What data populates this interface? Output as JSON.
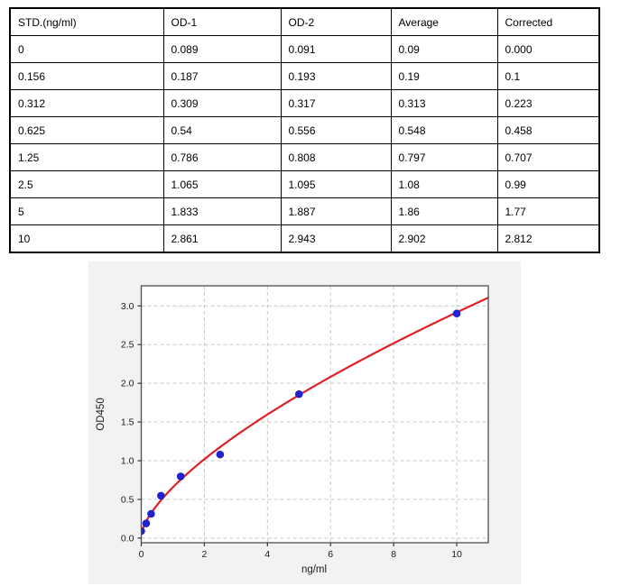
{
  "table": {
    "columns": [
      "STD.(ng/ml)",
      "OD-1",
      "OD-2",
      "Average",
      "Corrected"
    ],
    "rows": [
      [
        "0",
        "0.089",
        "0.091",
        "0.09",
        "0.000"
      ],
      [
        "0.156",
        "0.187",
        "0.193",
        "0.19",
        "0.1"
      ],
      [
        "0.312",
        "0.309",
        "0.317",
        "0.313",
        "0.223"
      ],
      [
        "0.625",
        "0.54",
        "0.556",
        "0.548",
        "0.458"
      ],
      [
        "1.25",
        "0.786",
        "0.808",
        "0.797",
        "0.707"
      ],
      [
        "2.5",
        "1.065",
        "1.095",
        "1.08",
        "0.99"
      ],
      [
        "5",
        "1.833",
        "1.887",
        "1.86",
        "1.77"
      ],
      [
        "10",
        "2.861",
        "2.943",
        "2.902",
        "2.812"
      ]
    ]
  },
  "chart_data": {
    "type": "scatter",
    "title": "",
    "xlabel": "ng/ml",
    "ylabel": "OD450",
    "x": [
      0,
      0.156,
      0.312,
      0.625,
      1.25,
      2.5,
      5,
      10
    ],
    "y": [
      0.09,
      0.19,
      0.313,
      0.548,
      0.797,
      1.08,
      1.86,
      2.902
    ],
    "curve_fit": {
      "type": "power",
      "formula": "y = 0.615 * x^0.67 + 0.04",
      "a": 0.615,
      "b": 0.67,
      "c": 0.04,
      "x_start": 0.004,
      "x_end": 11
    },
    "xlim": [
      0,
      11
    ],
    "ylim": [
      -0.06,
      3.26
    ],
    "xticks": [
      0,
      2,
      4,
      6,
      8,
      10
    ],
    "xtick_labels": [
      "0",
      "2",
      "4",
      "6",
      "8",
      "10"
    ],
    "yticks": [
      0.0,
      0.5,
      1.0,
      1.5,
      2.0,
      2.5,
      3.0
    ],
    "ytick_labels": [
      "0.0",
      "0.5",
      "1.0",
      "1.5",
      "2.0",
      "2.5",
      "3.0"
    ],
    "grid": "dashed",
    "legend": "none",
    "colors": {
      "figure_bg": "#f2f2f2",
      "plot_bg": "#ffffff",
      "point": "#2121cd",
      "curve": "#e02026",
      "gridline": "#c8c8c8",
      "spine": "#4d4d4d",
      "tick": "#333333"
    }
  }
}
